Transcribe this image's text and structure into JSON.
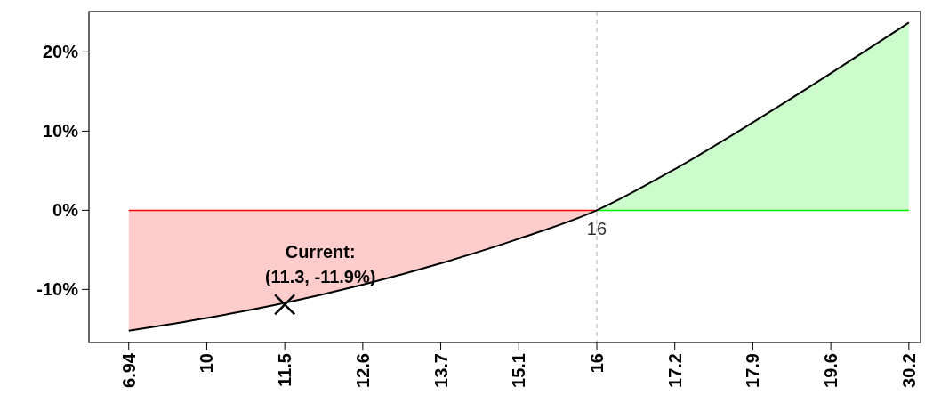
{
  "chart_data": {
    "type": "line",
    "categories": [
      "6.94",
      "10",
      "11.5",
      "12.6",
      "13.7",
      "15.1",
      "16",
      "17.2",
      "17.9",
      "19.6",
      "30.2"
    ],
    "series": [
      {
        "type": "area",
        "color": "#ff0000",
        "values": [
          -15.2,
          -13.6,
          -11.7,
          -9.4,
          -6.7,
          -3.6,
          0,
          null,
          null,
          null,
          null
        ]
      },
      {
        "type": "area",
        "color": "#00ee00",
        "values": [
          null,
          null,
          null,
          null,
          null,
          null,
          0,
          5.2,
          11.1,
          17.3,
          23.7
        ]
      },
      {
        "type": "line",
        "color": "#000000",
        "values": [
          -15.2,
          -13.6,
          -11.7,
          -9.4,
          -6.7,
          -3.6,
          0,
          5.2,
          11.1,
          17.3,
          23.7
        ]
      },
      {
        "type": "scatter",
        "color": "#000000",
        "marker": "cross",
        "x": [
          "11.5"
        ],
        "values": [
          -11.9
        ]
      }
    ],
    "ylim": [
      -16.7,
      25.1
    ],
    "yticks": [
      {
        "value": -10,
        "label": "-10%"
      },
      {
        "value": 0,
        "label": "0%"
      },
      {
        "value": 10,
        "label": "10%"
      },
      {
        "value": 20,
        "label": "20%"
      }
    ],
    "ref_lines": [
      {
        "axis": "x",
        "value": "16",
        "label": "16",
        "color": "#aaaaaa",
        "line_style": "dashed"
      }
    ],
    "annotations": [
      "Current:\n(11.3, -11.9%)"
    ],
    "grid": false,
    "marker": "none"
  }
}
